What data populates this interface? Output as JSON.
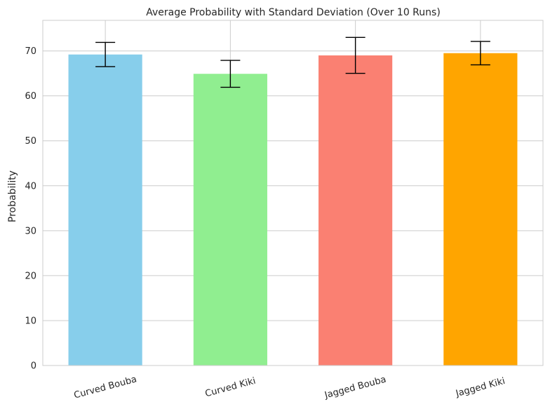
{
  "chart_data": {
    "type": "bar",
    "title": "Average Probability with Standard Deviation (Over 10 Runs)",
    "xlabel": "",
    "ylabel": "Probability",
    "ylim": [
      0,
      76.8
    ],
    "yticks": [
      0,
      10,
      20,
      30,
      40,
      50,
      60,
      70
    ],
    "grid": true,
    "categories": [
      "Curved Bouba",
      "Curved Kiki",
      "Jagged Bouba",
      "Jagged Kiki"
    ],
    "values": [
      69.2,
      64.9,
      69.0,
      69.5
    ],
    "errors": [
      2.7,
      3.0,
      4.0,
      2.6
    ],
    "colors": [
      "#87ceeb",
      "#90ee90",
      "#fa8072",
      "#ffa500"
    ]
  }
}
